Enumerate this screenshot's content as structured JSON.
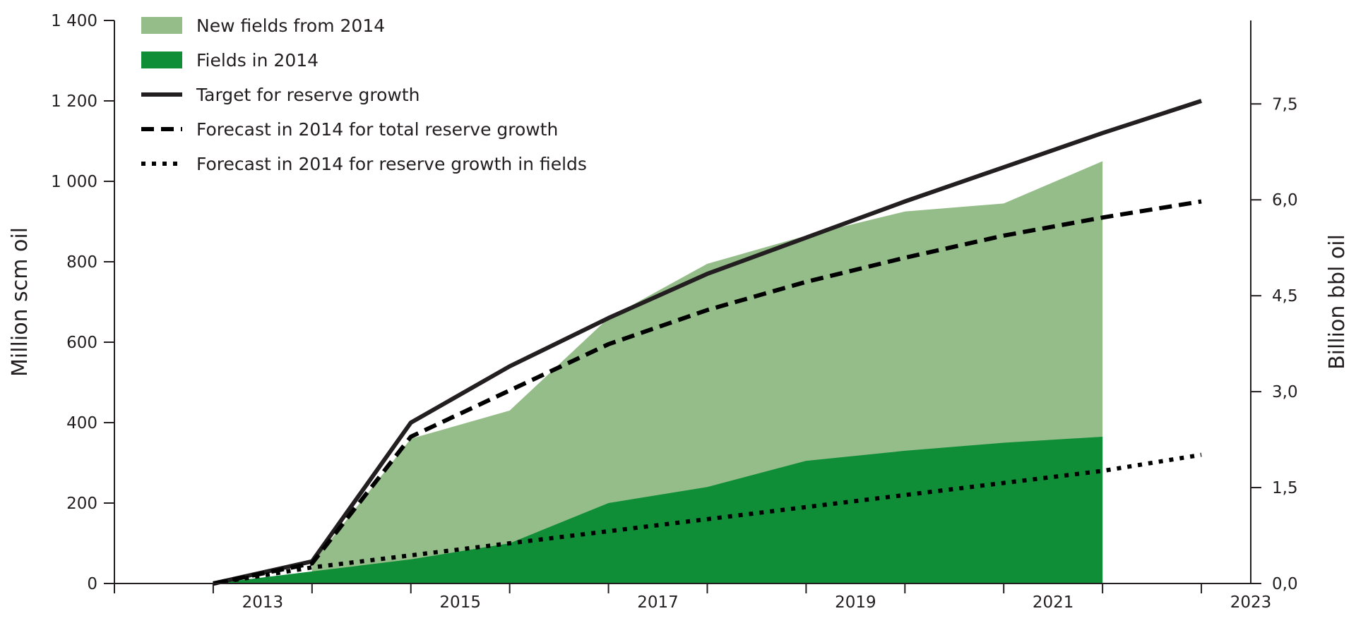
{
  "chart_data": {
    "type": "area",
    "x": [
      2013,
      2014,
      2015,
      2016,
      2017,
      2018,
      2019,
      2020,
      2021,
      2022,
      2023
    ],
    "x_tick_labels": [
      "2013",
      "2015",
      "2017",
      "2019",
      "2021",
      "2023"
    ],
    "xlim": [
      2012,
      2023.5
    ],
    "ylabel": "Million scm oil",
    "ylim": [
      0,
      1400
    ],
    "y_ticks": [
      0,
      200,
      400,
      600,
      800,
      1000,
      1200,
      1400
    ],
    "y_tick_labels": [
      "0",
      "200",
      "400",
      "600",
      "800",
      "1 000",
      "1 200",
      "1 400"
    ],
    "y2label": "Billion bbl oil",
    "y2_tick_labels": [
      "0,0",
      "1,5",
      "3,0",
      "4,5",
      "6,0",
      "7,5"
    ],
    "y2_tick_values_scm": [
      0,
      238.5,
      477,
      715.5,
      954,
      1192.5
    ],
    "legend_position": "top-left",
    "grid": false,
    "series": [
      {
        "name": "New fields from 2014",
        "kind": "area",
        "color": "#95bd89",
        "x": [
          2014,
          2015,
          2016,
          2017,
          2018,
          2019,
          2020,
          2021,
          2022
        ],
        "values": [
          50,
          360,
          430,
          660,
          795,
          865,
          925,
          945,
          1050
        ]
      },
      {
        "name": "Fields in 2014",
        "kind": "area",
        "color": "#0f8e37",
        "x": [
          2013,
          2014,
          2015,
          2016,
          2017,
          2018,
          2019,
          2020,
          2021,
          2022
        ],
        "values": [
          0,
          30,
          60,
          100,
          200,
          240,
          305,
          330,
          350,
          365
        ]
      },
      {
        "name": "Target for reserve growth",
        "kind": "line",
        "style": "solid",
        "color": "#231f20",
        "x": [
          2013,
          2014,
          2015,
          2016,
          2017,
          2018,
          2019,
          2020,
          2021,
          2022,
          2023
        ],
        "values": [
          0,
          55,
          400,
          540,
          660,
          770,
          860,
          950,
          1035,
          1120,
          1200
        ]
      },
      {
        "name": "Forecast in 2014 for total reserve growth",
        "kind": "line",
        "style": "dashed",
        "color": "#000000",
        "x": [
          2013,
          2014,
          2015,
          2016,
          2017,
          2018,
          2019,
          2020,
          2021,
          2022,
          2023
        ],
        "values": [
          0,
          50,
          365,
          480,
          595,
          680,
          750,
          810,
          865,
          910,
          950
        ]
      },
      {
        "name": "Forecast in 2014 for reserve growth in fields",
        "kind": "line",
        "style": "dotted",
        "color": "#000000",
        "x": [
          2013,
          2014,
          2015,
          2016,
          2017,
          2018,
          2019,
          2020,
          2021,
          2022,
          2023
        ],
        "values": [
          0,
          40,
          70,
          100,
          130,
          160,
          190,
          220,
          250,
          280,
          320
        ]
      }
    ]
  }
}
